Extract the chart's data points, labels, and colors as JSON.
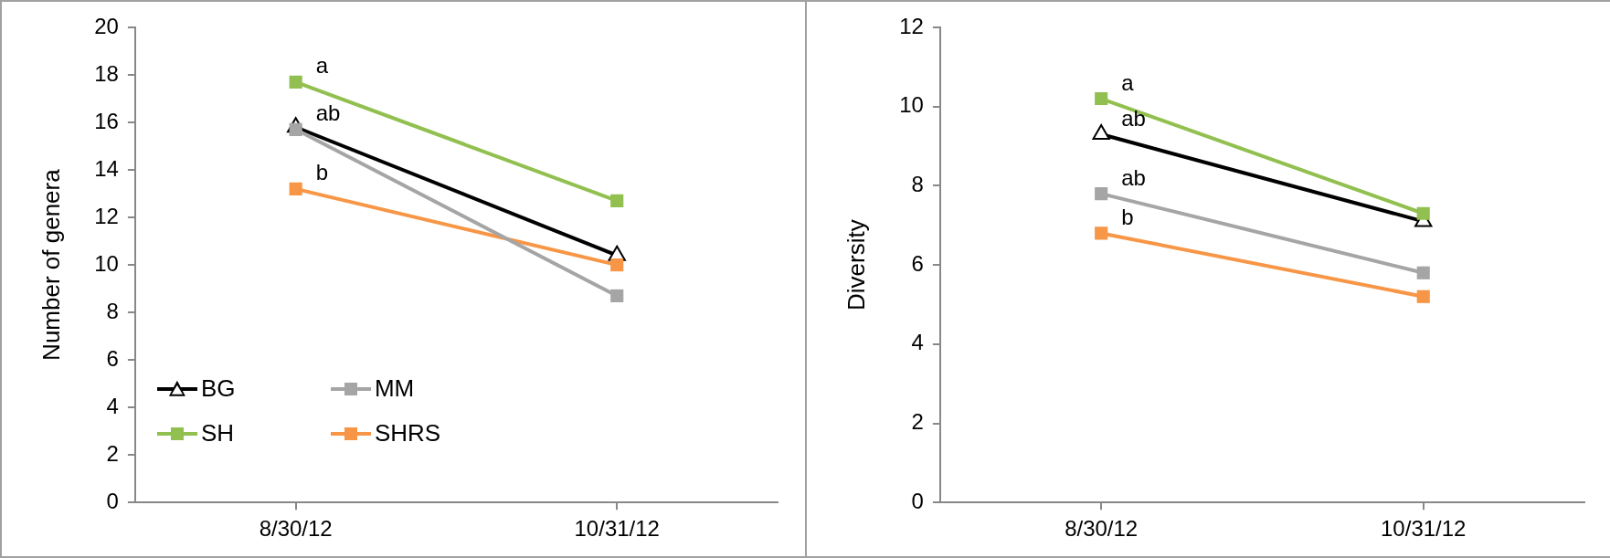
{
  "chart_data": [
    {
      "type": "line",
      "categories": [
        "8/30/12",
        "10/31/12"
      ],
      "ylabel": "Number of genera",
      "ylim": [
        0,
        20
      ],
      "yticks": [
        0,
        2,
        4,
        6,
        8,
        10,
        12,
        14,
        16,
        18,
        20
      ],
      "grid": false,
      "legend": "bottom left",
      "series": [
        {
          "name": "BG",
          "color": "#000000",
          "marker": "triangle",
          "values": [
            15.8,
            10.4
          ]
        },
        {
          "name": "MM",
          "color": "#a5a5a5",
          "marker": "square",
          "values": [
            15.7,
            8.7
          ]
        },
        {
          "name": "SH",
          "color": "#92c050",
          "marker": "square",
          "values": [
            17.7,
            12.7
          ]
        },
        {
          "name": "SHRS",
          "color": "#f79646",
          "marker": "square",
          "values": [
            13.2,
            10.0
          ]
        }
      ],
      "annotations": [
        {
          "text": "a",
          "x": "8/30/12",
          "y": 17.7
        },
        {
          "text": "ab",
          "x": "8/30/12",
          "y": 15.7
        },
        {
          "text": "b",
          "x": "8/30/12",
          "y": 13.2
        }
      ]
    },
    {
      "type": "line",
      "categories": [
        "8/30/12",
        "10/31/12"
      ],
      "ylabel": "Diversity",
      "ylim": [
        0,
        12
      ],
      "yticks": [
        0,
        2,
        4,
        6,
        8,
        10,
        12
      ],
      "grid": false,
      "legend": false,
      "series": [
        {
          "color": "#000000",
          "marker": "triangle",
          "values": [
            9.3,
            7.1
          ]
        },
        {
          "color": "#a5a5a5",
          "marker": "square",
          "values": [
            7.8,
            5.8
          ]
        },
        {
          "color": "#92c050",
          "marker": "square",
          "values": [
            10.2,
            7.3
          ]
        },
        {
          "color": "#f79646",
          "marker": "square",
          "values": [
            6.8,
            5.2
          ]
        }
      ],
      "annotations": [
        {
          "text": "a",
          "x": "8/30/12",
          "y": 10.2
        },
        {
          "text": "ab",
          "x": "8/30/12",
          "y": 9.3
        },
        {
          "text": "ab",
          "x": "8/30/12",
          "y": 7.8
        },
        {
          "text": "b",
          "x": "8/30/12",
          "y": 6.8
        }
      ]
    }
  ]
}
